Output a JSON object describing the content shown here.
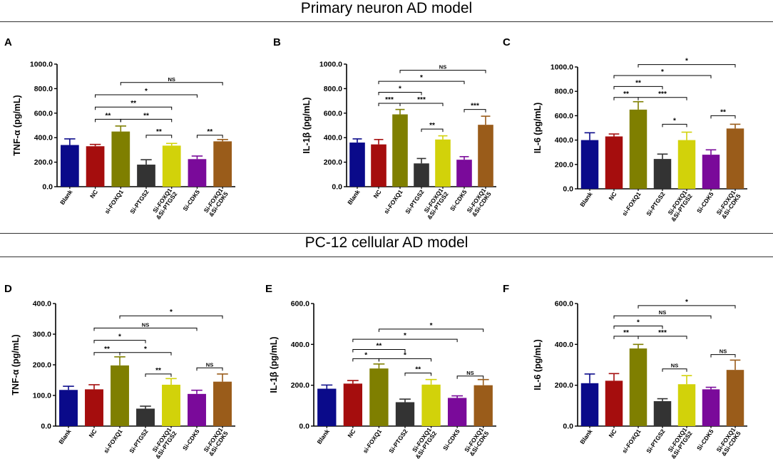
{
  "sections": [
    {
      "title": "Primary neuron AD model"
    },
    {
      "title": "PC-12 cellular AD model"
    }
  ],
  "colors": {
    "Blank": "#0a0a8a",
    "NC": "#a50d0d",
    "si-FOXQ1": "#7f7f00",
    "Si-PTGS2": "#333333",
    "Si-FOXQ1&Si-PTGS2": "#d2d20a",
    "Si-CDK5": "#7a0a9a",
    "Si-FOXQ1&Si-CDK5": "#9a5c1a"
  },
  "chart_data": [
    {
      "panel": "A",
      "type": "bar",
      "ylabel": "TNF-α (pg/mL)",
      "ylim": [
        0,
        1000
      ],
      "ticks": [
        0,
        200,
        400,
        600,
        800,
        1000
      ],
      "tick_labels": [
        "0.0",
        "200.0",
        "400.0",
        "600.0",
        "800.0",
        "1000.0"
      ],
      "categories": [
        "Blank",
        "NC",
        "si-FOXQ1",
        "Si-PTGS2",
        "Si-FOXQ1&Si-PTGS2",
        "Si-CDK5",
        "Si-FOXQ1&Si-CDK5"
      ],
      "category_labels": [
        [
          "Blank"
        ],
        [
          "NC"
        ],
        [
          "si-FOXQ1"
        ],
        [
          "Si-PTGS2"
        ],
        [
          "Si-FOXQ1",
          "&Si-PTGS2"
        ],
        [
          "Si-CDK5"
        ],
        [
          "Si-FOXQ1",
          "&Si-CDK5"
        ]
      ],
      "values": [
        340,
        330,
        450,
        180,
        335,
        225,
        370
      ],
      "errors": [
        50,
        15,
        45,
        40,
        18,
        25,
        15
      ],
      "significance": [
        {
          "from": 1,
          "to": 2,
          "label": "**",
          "value": 550
        },
        {
          "from": 2,
          "to": 4,
          "label": "**",
          "value": 550
        },
        {
          "from": 1,
          "to": 4,
          "label": "**",
          "value": 650
        },
        {
          "from": 1,
          "to": 5,
          "label": "*",
          "value": 750
        },
        {
          "from": 2,
          "to": 6,
          "label": "NS",
          "value": 850
        },
        {
          "from": 3,
          "to": 4,
          "label": "**",
          "value": 420
        },
        {
          "from": 5,
          "to": 6,
          "label": "**",
          "value": 420
        }
      ]
    },
    {
      "panel": "B",
      "type": "bar",
      "ylabel": "IL-1β (pg/mL)",
      "ylim": [
        0,
        1000
      ],
      "ticks": [
        0,
        200,
        400,
        600,
        800,
        1000
      ],
      "tick_labels": [
        "0.0",
        "200.0",
        "400.0",
        "600.0",
        "800.0",
        "1000.0"
      ],
      "categories": [
        "Blank",
        "NC",
        "si-FOXQ1",
        "Si-PTGS2",
        "Si-FOXQ1&Si-PTGS2",
        "Si-CDK5",
        "Si-FOXQ1&Si-CDK5"
      ],
      "category_labels": [
        [
          "Blank"
        ],
        [
          "NC"
        ],
        [
          "si-FOXQ1"
        ],
        [
          "Si-PTGS2"
        ],
        [
          "Si-FOXQ1",
          "&Si-PTGS2"
        ],
        [
          "Si-CDK5"
        ],
        [
          "Si-FOXQ1",
          "&Si-CDK5"
        ]
      ],
      "values": [
        360,
        345,
        590,
        190,
        385,
        220,
        505
      ],
      "errors": [
        30,
        40,
        40,
        40,
        30,
        25,
        70
      ],
      "significance": [
        {
          "from": 1,
          "to": 2,
          "label": "***",
          "value": 680
        },
        {
          "from": 2,
          "to": 4,
          "label": "***",
          "value": 680
        },
        {
          "from": 1,
          "to": 3,
          "label": "*",
          "value": 770
        },
        {
          "from": 1,
          "to": 5,
          "label": "*",
          "value": 860
        },
        {
          "from": 2,
          "to": 6,
          "label": "NS",
          "value": 950
        },
        {
          "from": 3,
          "to": 4,
          "label": "**",
          "value": 470
        },
        {
          "from": 5,
          "to": 6,
          "label": "***",
          "value": 630
        }
      ]
    },
    {
      "panel": "C",
      "type": "bar",
      "ylabel": "IL-6 (pg/mL)",
      "ylim": [
        0,
        1000
      ],
      "ticks": [
        0,
        200,
        400,
        600,
        800,
        1000
      ],
      "tick_labels": [
        "0.0",
        "200.0",
        "400.0",
        "600.0",
        "800.0",
        "1000.0"
      ],
      "categories": [
        "Blank",
        "NC",
        "si-FOXQ1",
        "Si-PTGS2",
        "Si-FOXQ1&Si-PTGS2",
        "Si-CDK5",
        "Si-FOXQ1&Si-CDK5"
      ],
      "category_labels": [
        [
          "Blank"
        ],
        [
          "NC"
        ],
        [
          "si-FOXQ1"
        ],
        [
          "Si-PTGS2"
        ],
        [
          "Si-FOXQ1",
          "&Si-PTGS2"
        ],
        [
          "Si-CDK5"
        ],
        [
          "Si-FOXQ1",
          "&Si-CDK5"
        ]
      ],
      "values": [
        400,
        430,
        650,
        245,
        400,
        280,
        495
      ],
      "errors": [
        60,
        20,
        65,
        40,
        65,
        40,
        35
      ],
      "significance": [
        {
          "from": 1,
          "to": 2,
          "label": "**",
          "value": 750
        },
        {
          "from": 2,
          "to": 4,
          "label": "***",
          "value": 750
        },
        {
          "from": 1,
          "to": 3,
          "label": "**",
          "value": 840
        },
        {
          "from": 1,
          "to": 5,
          "label": "*",
          "value": 930
        },
        {
          "from": 2,
          "to": 6,
          "label": "*",
          "value": 1020
        },
        {
          "from": 3,
          "to": 4,
          "label": "*",
          "value": 530
        },
        {
          "from": 5,
          "to": 6,
          "label": "**",
          "value": 600
        }
      ]
    },
    {
      "panel": "D",
      "type": "bar",
      "ylabel": "TNF-α (pg/mL)",
      "ylim": [
        0,
        400
      ],
      "ticks": [
        0,
        100,
        200,
        300,
        400
      ],
      "tick_labels": [
        "0.0",
        "100.0",
        "200.0",
        "300.0",
        "400.0"
      ],
      "categories": [
        "Blank",
        "NC",
        "si-FOXQ1",
        "Si-PTGS2",
        "Si-FOXQ1&Si-PTGS2",
        "Si-CDK5",
        "Si-FOXQ1&Si-CDK5"
      ],
      "category_labels": [
        [
          "Blank"
        ],
        [
          "NC"
        ],
        [
          "si-FOXQ1"
        ],
        [
          "Si-PTGS2"
        ],
        [
          "Si-FOXQ1",
          "&Si-PTGS2"
        ],
        [
          "Si-CDK5"
        ],
        [
          "Si-FOXQ1",
          "&Si-CDK5"
        ]
      ],
      "values": [
        118,
        120,
        198,
        57,
        135,
        105,
        145
      ],
      "errors": [
        12,
        15,
        28,
        8,
        20,
        12,
        25
      ],
      "significance": [
        {
          "from": 1,
          "to": 2,
          "label": "**",
          "value": 240
        },
        {
          "from": 2,
          "to": 4,
          "label": "*",
          "value": 240
        },
        {
          "from": 1,
          "to": 3,
          "label": "*",
          "value": 280
        },
        {
          "from": 1,
          "to": 5,
          "label": "NS",
          "value": 320
        },
        {
          "from": 2,
          "to": 6,
          "label": "*",
          "value": 360
        },
        {
          "from": 3,
          "to": 4,
          "label": "**",
          "value": 170
        },
        {
          "from": 5,
          "to": 6,
          "label": "NS",
          "value": 190
        }
      ]
    },
    {
      "panel": "E",
      "type": "bar",
      "ylabel": "IL-1β (pg/mL)",
      "ylim": [
        0,
        600
      ],
      "ticks": [
        0,
        200,
        400,
        600
      ],
      "tick_labels": [
        "0.0",
        "200.0",
        "400.0",
        "600.0"
      ],
      "categories": [
        "Blank",
        "NC",
        "si-FOXQ1",
        "Si-PTGS2",
        "Si-FOXQ1&Si-PTGS2",
        "Si-CDK5",
        "Si-FOXQ1&Si-CDK5"
      ],
      "category_labels": [
        [
          "Blank"
        ],
        [
          "NC"
        ],
        [
          "si-FOXQ1"
        ],
        [
          "Si-PTGS2"
        ],
        [
          "Si-FOXQ1",
          "&Si-PTGS2"
        ],
        [
          "Si-CDK5"
        ],
        [
          "Si-FOXQ1",
          "&Si-CDK5"
        ]
      ],
      "values": [
        183,
        208,
        282,
        117,
        203,
        138,
        200
      ],
      "errors": [
        18,
        15,
        22,
        15,
        25,
        10,
        28
      ],
      "significance": [
        {
          "from": 1,
          "to": 2,
          "label": "*",
          "value": 330
        },
        {
          "from": 2,
          "to": 4,
          "label": "*",
          "value": 330
        },
        {
          "from": 1,
          "to": 3,
          "label": "**",
          "value": 375
        },
        {
          "from": 1,
          "to": 5,
          "label": "*",
          "value": 425
        },
        {
          "from": 2,
          "to": 6,
          "label": "*",
          "value": 475
        },
        {
          "from": 3,
          "to": 4,
          "label": "**",
          "value": 260
        },
        {
          "from": 5,
          "to": 6,
          "label": "NS",
          "value": 245
        }
      ]
    },
    {
      "panel": "F",
      "type": "bar",
      "ylabel": "IL-6 (pg/mL)",
      "ylim": [
        0,
        600
      ],
      "ticks": [
        0,
        200,
        400,
        600
      ],
      "tick_labels": [
        "0.0",
        "200.0",
        "400.0",
        "600.0"
      ],
      "categories": [
        "Blank",
        "NC",
        "si-FOXQ1",
        "Si-PTGS2",
        "Si-FOXQ1&Si-PTGS2",
        "Si-CDK5",
        "Si-FOXQ1&Si-CDK5"
      ],
      "category_labels": [
        [
          "Blank"
        ],
        [
          "NC"
        ],
        [
          "si-FOXQ1"
        ],
        [
          "Si-PTGS2"
        ],
        [
          "Si-FOXQ1",
          "&Si-PTGS2"
        ],
        [
          "Si-CDK5"
        ],
        [
          "Si-FOXQ1",
          "&Si-CDK5"
        ]
      ],
      "values": [
        210,
        222,
        380,
        122,
        205,
        180,
        275
      ],
      "errors": [
        45,
        35,
        20,
        12,
        42,
        10,
        48
      ],
      "significance": [
        {
          "from": 1,
          "to": 2,
          "label": "**",
          "value": 440
        },
        {
          "from": 2,
          "to": 4,
          "label": "***",
          "value": 440
        },
        {
          "from": 1,
          "to": 3,
          "label": "*",
          "value": 490
        },
        {
          "from": 1,
          "to": 5,
          "label": "NS",
          "value": 540
        },
        {
          "from": 2,
          "to": 6,
          "label": "*",
          "value": 590
        },
        {
          "from": 3,
          "to": 4,
          "label": "NS",
          "value": 280
        },
        {
          "from": 5,
          "to": 6,
          "label": "NS",
          "value": 350
        }
      ]
    }
  ]
}
